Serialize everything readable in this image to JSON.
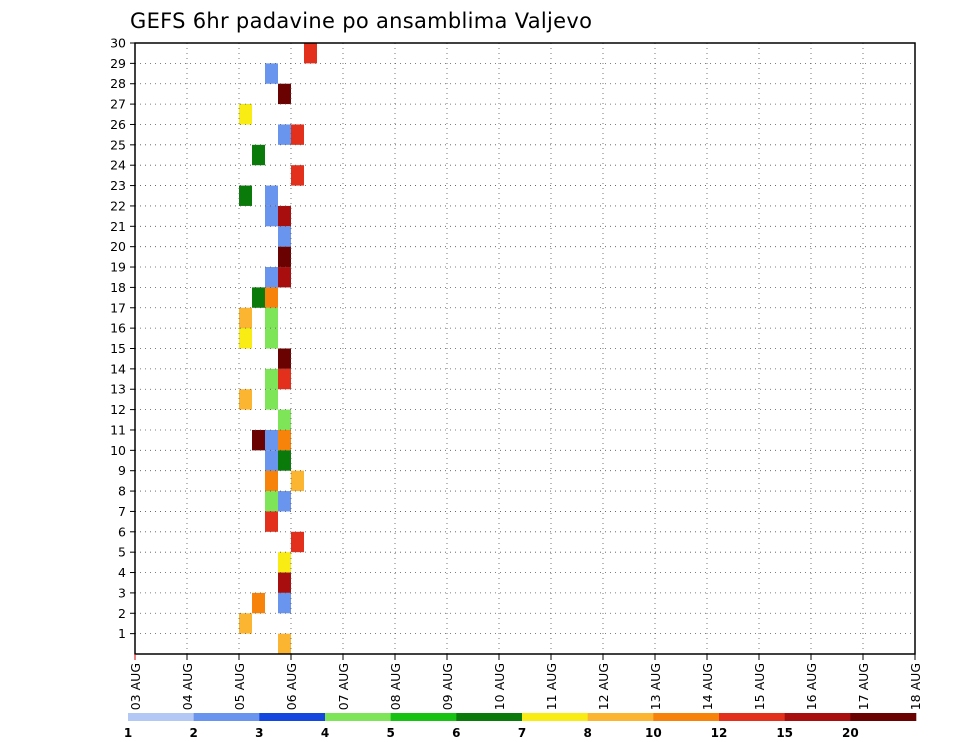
{
  "chart_data": {
    "type": "heatmap",
    "title": "GEFS 6hr padavine po ansamblima Valjevo",
    "x_ticks": [
      "03 AUG",
      "04 AUG",
      "05 AUG",
      "06 AUG",
      "07 AUG",
      "08 AUG",
      "09 AUG",
      "10 AUG",
      "11 AUG",
      "12 AUG",
      "13 AUG",
      "14 AUG",
      "15 AUG",
      "16 AUG",
      "17 AUG",
      "18 AUG"
    ],
    "y_ticks": [
      "1",
      "2",
      "3",
      "4",
      "5",
      "6",
      "7",
      "8",
      "9",
      "10",
      "11",
      "12",
      "13",
      "14",
      "15",
      "16",
      "17",
      "18",
      "19",
      "20",
      "21",
      "22",
      "23",
      "24",
      "25",
      "26",
      "27",
      "28",
      "29",
      "30"
    ],
    "ylim": [
      0,
      30
    ],
    "x_unit": "6-hour step (4 per day) from 03 AUG",
    "x_steps": 60,
    "grid": true,
    "colorbar": {
      "boundaries": [
        "1",
        "2",
        "3",
        "4",
        "5",
        "6",
        "7",
        "8",
        "10",
        "12",
        "15",
        "20"
      ],
      "colors": [
        "#b3c8f5",
        "#6a95ee",
        "#1447dd",
        "#7de557",
        "#17c213",
        "#0a7a0a",
        "#f9ec14",
        "#fbb531",
        "#f7830b",
        "#e2301c",
        "#a80e0e",
        "#6b0202"
      ]
    },
    "cells": [
      {
        "m": 30,
        "s": [
          [
            13,
            9
          ]
        ]
      },
      {
        "m": 29,
        "s": [
          [
            10,
            1
          ]
        ]
      },
      {
        "m": 28,
        "s": [
          [
            11,
            11
          ]
        ]
      },
      {
        "m": 27,
        "s": [
          [
            8,
            4
          ],
          [
            8,
            6
          ]
        ]
      },
      {
        "m": 26,
        "s": [
          [
            11,
            1
          ],
          [
            12,
            9
          ]
        ]
      },
      {
        "m": 25,
        "s": [
          [
            9,
            5
          ]
        ]
      },
      {
        "m": 24,
        "s": [
          [
            12,
            9
          ]
        ]
      },
      {
        "m": 23,
        "s": [
          [
            8,
            5
          ],
          [
            10,
            1
          ]
        ]
      },
      {
        "m": 22,
        "s": [
          [
            11,
            10
          ],
          [
            10,
            1
          ]
        ]
      },
      {
        "m": 21,
        "s": [
          [
            11,
            1
          ]
        ]
      },
      {
        "m": 20,
        "s": [
          [
            11,
            11
          ]
        ]
      },
      {
        "m": 19,
        "s": [
          [
            11,
            10
          ],
          [
            10,
            1
          ]
        ]
      },
      {
        "m": 18,
        "s": [
          [
            10,
            1
          ],
          [
            10,
            8
          ],
          [
            9,
            5
          ]
        ]
      },
      {
        "m": 17,
        "s": [
          [
            8,
            7
          ],
          [
            10,
            3
          ]
        ]
      },
      {
        "m": 16,
        "s": [
          [
            8,
            4
          ],
          [
            8,
            6
          ],
          [
            10,
            3
          ]
        ]
      },
      {
        "m": 15,
        "s": [
          [
            11,
            11
          ]
        ]
      },
      {
        "m": 14,
        "s": [
          [
            11,
            9
          ],
          [
            10,
            3
          ]
        ]
      },
      {
        "m": 13,
        "s": [
          [
            8,
            7
          ],
          [
            10,
            3
          ]
        ]
      },
      {
        "m": 12,
        "s": [
          [
            11,
            3
          ]
        ]
      },
      {
        "m": 11,
        "s": [
          [
            11,
            8
          ],
          [
            10,
            1
          ],
          [
            9,
            11
          ]
        ]
      },
      {
        "m": 10,
        "s": [
          [
            11,
            5
          ],
          [
            10,
            1
          ]
        ]
      },
      {
        "m": 9,
        "s": [
          [
            12,
            7
          ],
          [
            10,
            1
          ],
          [
            10,
            8
          ]
        ]
      },
      {
        "m": 8,
        "s": [
          [
            11,
            1
          ],
          [
            10,
            3
          ]
        ]
      },
      {
        "m": 7,
        "s": [
          [
            10,
            9
          ]
        ]
      },
      {
        "m": 6,
        "s": [
          [
            12,
            9
          ]
        ]
      },
      {
        "m": 5,
        "s": [
          [
            11,
            6
          ]
        ]
      },
      {
        "m": 4,
        "s": [
          [
            11,
            10
          ]
        ]
      },
      {
        "m": 3,
        "s": [
          [
            11,
            1
          ],
          [
            9,
            8
          ]
        ]
      },
      {
        "m": 2,
        "s": [
          [
            8,
            7
          ]
        ]
      },
      {
        "m": 1,
        "s": [
          [
            11,
            7
          ]
        ]
      }
    ]
  }
}
